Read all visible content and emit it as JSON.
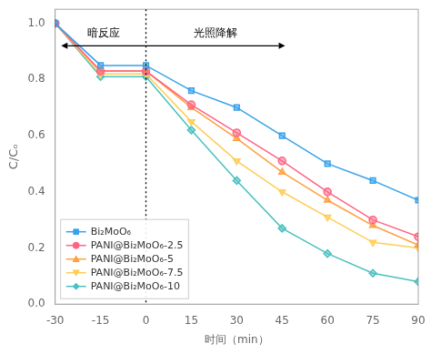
{
  "chart_data": {
    "type": "line",
    "xlabel": "时间（min）",
    "ylabel": "C/Cₒ",
    "x": [
      -30,
      -15,
      0,
      15,
      30,
      45,
      60,
      75,
      90
    ],
    "xlim": [
      -30,
      90
    ],
    "ylim": [
      0.0,
      1.05
    ],
    "xticks": [
      -30,
      -15,
      0,
      15,
      30,
      45,
      60,
      75,
      90
    ],
    "yticks": [
      {
        "value": 0.0,
        "label": "0.0"
      },
      0.2,
      0.4,
      0.6,
      0.8,
      {
        "value": 1.0,
        "label": "1.0"
      }
    ],
    "grid": false,
    "legend": "lower left",
    "vlines": [
      0
    ],
    "arrows": [
      {
        "x_start": -28,
        "x_end": 46,
        "y": 0.92
      }
    ],
    "annotations": [
      {
        "text": "暗反应",
        "x": -14,
        "y": 0.965
      },
      {
        "text": "光照降解",
        "x": 23,
        "y": 0.965
      }
    ],
    "series": [
      {
        "name": "Bi₂MoO₆",
        "marker": "square",
        "line_style": "solid",
        "values": [
          1.0,
          0.85,
          0.85,
          0.76,
          0.7,
          0.6,
          0.5,
          0.44,
          0.37
        ]
      },
      {
        "name": "PANI@Bi₂MoO₆-2.5",
        "marker": "circle",
        "line_style": "solid",
        "values": [
          1.0,
          0.83,
          0.83,
          0.71,
          0.61,
          0.51,
          0.4,
          0.3,
          0.24
        ]
      },
      {
        "name": "PANI@Bi₂MoO₆-5",
        "marker": "triangle_up",
        "line_style": "solid",
        "values": [
          1.0,
          0.83,
          0.83,
          0.7,
          0.59,
          0.47,
          0.37,
          0.28,
          0.21
        ]
      },
      {
        "name": "PANI@Bi₂MoO₆-7.5",
        "marker": "triangle_down",
        "line_style": "solid",
        "values": [
          1.0,
          0.82,
          0.82,
          0.65,
          0.51,
          0.4,
          0.31,
          0.22,
          0.2
        ]
      },
      {
        "name": "PANI@Bi₂MoO₆-10",
        "marker": "diamond",
        "line_style": "solid",
        "values": [
          1.0,
          0.81,
          0.81,
          0.62,
          0.44,
          0.27,
          0.18,
          0.11,
          0.08
        ]
      }
    ]
  }
}
